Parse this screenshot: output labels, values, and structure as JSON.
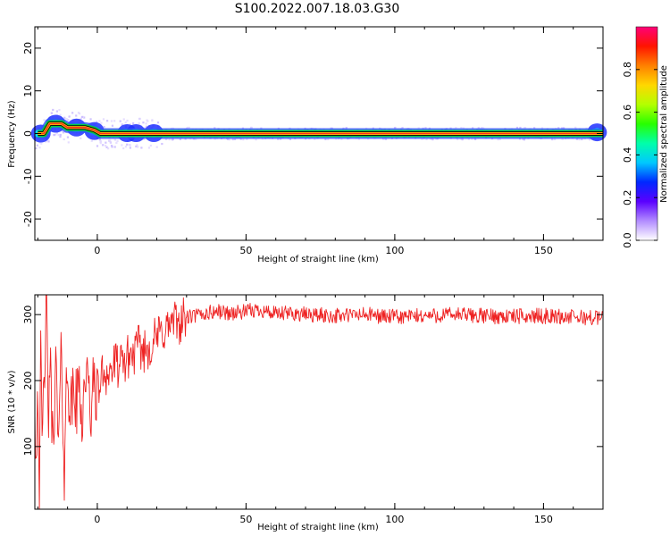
{
  "figure_title": "S100.2022.007.18.03.G30",
  "chart_data": [
    {
      "type": "heatmap",
      "title": "S100.2022.007.18.03.G30",
      "xlabel": "Height of straight line (km)",
      "ylabel": "Frequency (Hz)",
      "xlim": [
        -21,
        170
      ],
      "ylim": [
        -25,
        25
      ],
      "xticks": [
        0,
        50,
        100,
        150
      ],
      "yticks": [
        20,
        10,
        0,
        -10,
        -20
      ],
      "xtick_labels": [
        "0",
        "50",
        "100",
        "150"
      ],
      "ytick_labels": [
        "20",
        "10",
        "0",
        "-10",
        "-20"
      ],
      "grid": false,
      "ridge": [
        {
          "x": -20,
          "y": 0.0
        },
        {
          "x": -18,
          "y": 0.0
        },
        {
          "x": -16,
          "y": 2.3
        },
        {
          "x": -12,
          "y": 2.3
        },
        {
          "x": -10,
          "y": 1.4
        },
        {
          "x": -4,
          "y": 1.4
        },
        {
          "x": -1,
          "y": 0.8
        },
        {
          "x": 1,
          "y": 0.0
        },
        {
          "x": 170,
          "y": 0.0
        }
      ],
      "colorbar": {
        "label": "Normalized spectral amplitude",
        "ticks": [
          "0.0",
          "0.2",
          "0.4",
          "0.6",
          "0.8"
        ],
        "range": [
          0,
          1
        ],
        "colors": [
          "#ffffff",
          "#b28cff",
          "#5a00ff",
          "#0028ff",
          "#00c8ff",
          "#00ffaa",
          "#28ff00",
          "#b4ff00",
          "#ffd700",
          "#ff8000",
          "#ff1400",
          "#ff0078"
        ]
      },
      "colors": {
        "ridge_core": "#ff2a20",
        "ridge_edge": "#ffd700",
        "ridge_halo": "#3050ff",
        "ridge_outer": "#00cc44"
      }
    },
    {
      "type": "line",
      "xlabel": "Height of straight line (km)",
      "ylabel": "SNR (10 * v/v)",
      "xlim": [
        -21,
        170
      ],
      "ylim": [
        5,
        330
      ],
      "xticks": [
        0,
        50,
        100,
        150
      ],
      "yticks": [
        300,
        200,
        100
      ],
      "xtick_labels": [
        "0",
        "50",
        "100",
        "150"
      ],
      "ytick_labels": [
        "300",
        "200",
        "100"
      ],
      "grid": false,
      "series": [
        {
          "color": "#ee2222",
          "x": [
            -21,
            -20.5,
            -20,
            -19.5,
            -19,
            -18.5,
            -18,
            -17.5,
            -17,
            -16.5,
            -16,
            -15.5,
            -15,
            -14,
            -13,
            -12,
            -11.5,
            -11,
            -10.5,
            -10,
            -9,
            -8,
            -7,
            -6,
            -5,
            -4,
            -3,
            -2,
            -1,
            0,
            2,
            4,
            6,
            8,
            10,
            12,
            14,
            16,
            18,
            20,
            22,
            25,
            28,
            30,
            35,
            40,
            45,
            50,
            55,
            60,
            65,
            70,
            80,
            90,
            100,
            110,
            120,
            130,
            140,
            150,
            160,
            170
          ],
          "y": [
            180,
            60,
            240,
            8,
            230,
            95,
            180,
            270,
            295,
            120,
            240,
            170,
            110,
            220,
            95,
            250,
            130,
            42,
            180,
            230,
            140,
            190,
            160,
            200,
            140,
            220,
            175,
            155,
            200,
            180,
            215,
            210,
            225,
            220,
            235,
            240,
            250,
            245,
            255,
            265,
            275,
            285,
            290,
            295,
            300,
            305,
            302,
            304,
            308,
            300,
            302,
            300,
            298,
            300,
            296,
            298,
            300,
            298,
            297,
            298,
            296,
            295
          ]
        }
      ]
    }
  ]
}
